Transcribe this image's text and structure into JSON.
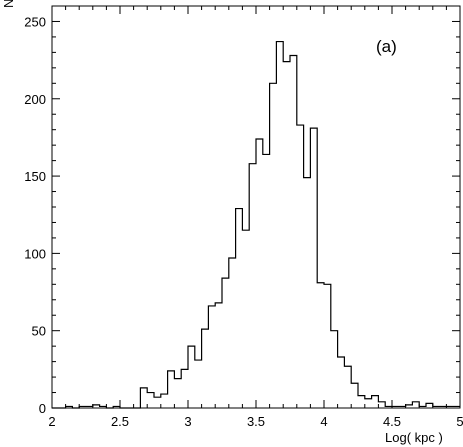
{
  "chart_data": {
    "type": "histogram",
    "panel_label": "(a)",
    "xlabel": "Log( kpc )",
    "ylabel": "N",
    "xlim": [
      2,
      5
    ],
    "ylim": [
      0,
      260
    ],
    "x_ticks": [
      {
        "value": 2,
        "label": "2"
      },
      {
        "value": 2.5,
        "label": "2.5"
      },
      {
        "value": 3,
        "label": "3"
      },
      {
        "value": 3.5,
        "label": "3.5"
      },
      {
        "value": 4,
        "label": "4"
      },
      {
        "value": 4.5,
        "label": "4.5"
      },
      {
        "value": 5,
        "label": "5"
      }
    ],
    "y_ticks": [
      {
        "value": 0,
        "label": "0"
      },
      {
        "value": 50,
        "label": "50"
      },
      {
        "value": 100,
        "label": "100"
      },
      {
        "value": 150,
        "label": "150"
      },
      {
        "value": 200,
        "label": "200"
      },
      {
        "value": 250,
        "label": "250"
      }
    ],
    "bin_width": 0.05,
    "x_start": 2.0,
    "counts": [
      0,
      0,
      1,
      0,
      1,
      1,
      2,
      1,
      0,
      1,
      0,
      0,
      0,
      13,
      10,
      7,
      9,
      24,
      19,
      25,
      40,
      31,
      51,
      66,
      68,
      84,
      97,
      129,
      115,
      158,
      174,
      164,
      210,
      237,
      224,
      228,
      183,
      149,
      181,
      81,
      80,
      50,
      33,
      27,
      16,
      8,
      6,
      8,
      4,
      1,
      1,
      1,
      2,
      4,
      1,
      3,
      1,
      1,
      1,
      1
    ]
  }
}
